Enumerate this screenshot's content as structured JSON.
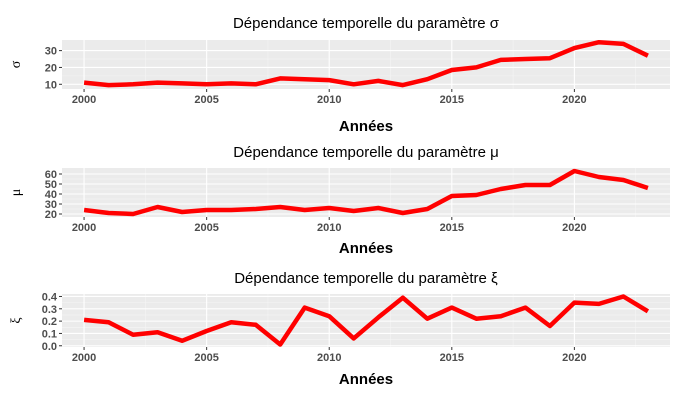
{
  "chart_data": [
    {
      "type": "line",
      "title": "Dépendance temporelle du paramètre σ",
      "xlabel": "Années",
      "ylabel": "σ",
      "x": [
        2000,
        2001,
        2002,
        2003,
        2004,
        2005,
        2006,
        2007,
        2008,
        2009,
        2010,
        2011,
        2012,
        2013,
        2014,
        2015,
        2016,
        2017,
        2018,
        2019,
        2020,
        2021,
        2022,
        2023
      ],
      "series": [
        {
          "values": [
            11,
            9.5,
            10,
            11,
            10.5,
            10,
            10.5,
            10,
            13.5,
            13,
            12.5,
            10,
            12,
            9.5,
            13,
            18.5,
            20,
            24.5,
            25,
            25.5,
            31.5,
            35,
            34,
            27
          ]
        }
      ],
      "xticks": [
        2000,
        2005,
        2010,
        2015,
        2020
      ],
      "yticks": [
        10,
        20,
        30
      ],
      "xlim": [
        1999.1,
        2023.9
      ],
      "ylim": [
        7.2,
        36.3
      ],
      "color": "#ff0000",
      "grid": true
    },
    {
      "type": "line",
      "title": "Dépendance temporelle du paramètre μ",
      "xlabel": "Années",
      "ylabel": "μ",
      "x": [
        2000,
        2001,
        2002,
        2003,
        2004,
        2005,
        2006,
        2007,
        2008,
        2009,
        2010,
        2011,
        2012,
        2013,
        2014,
        2015,
        2016,
        2017,
        2018,
        2019,
        2020,
        2021,
        2022,
        2023
      ],
      "series": [
        {
          "values": [
            24,
            21,
            20,
            27,
            22,
            24,
            24,
            25,
            27,
            24,
            26,
            23,
            26,
            21,
            25,
            38,
            39,
            45,
            49,
            49,
            63,
            57,
            54,
            46
          ]
        }
      ],
      "xticks": [
        2000,
        2005,
        2010,
        2015,
        2020
      ],
      "yticks": [
        20,
        30,
        40,
        50,
        60
      ],
      "xlim": [
        1999.1,
        2023.9
      ],
      "ylim": [
        17,
        66
      ],
      "color": "#ff0000",
      "grid": true
    },
    {
      "type": "line",
      "title": "Dépendance temporelle du paramètre ξ",
      "xlabel": "Années",
      "ylabel": "ξ",
      "x": [
        2000,
        2001,
        2002,
        2003,
        2004,
        2005,
        2006,
        2007,
        2008,
        2009,
        2010,
        2011,
        2012,
        2013,
        2014,
        2015,
        2016,
        2017,
        2018,
        2019,
        2020,
        2021,
        2022,
        2023
      ],
      "series": [
        {
          "values": [
            0.21,
            0.19,
            0.09,
            0.11,
            0.04,
            0.12,
            0.19,
            0.17,
            0.01,
            0.31,
            0.24,
            0.06,
            0.23,
            0.39,
            0.22,
            0.31,
            0.22,
            0.24,
            0.31,
            0.16,
            0.35,
            0.34,
            0.4,
            0.28
          ]
        }
      ],
      "xticks": [
        2000,
        2005,
        2010,
        2015,
        2020
      ],
      "yticks": [
        0.0,
        0.1,
        0.2,
        0.3,
        0.4
      ],
      "xlim": [
        1999.1,
        2023.9
      ],
      "ylim": [
        -0.01,
        0.42
      ],
      "color": "#ff0000",
      "grid": true
    }
  ]
}
